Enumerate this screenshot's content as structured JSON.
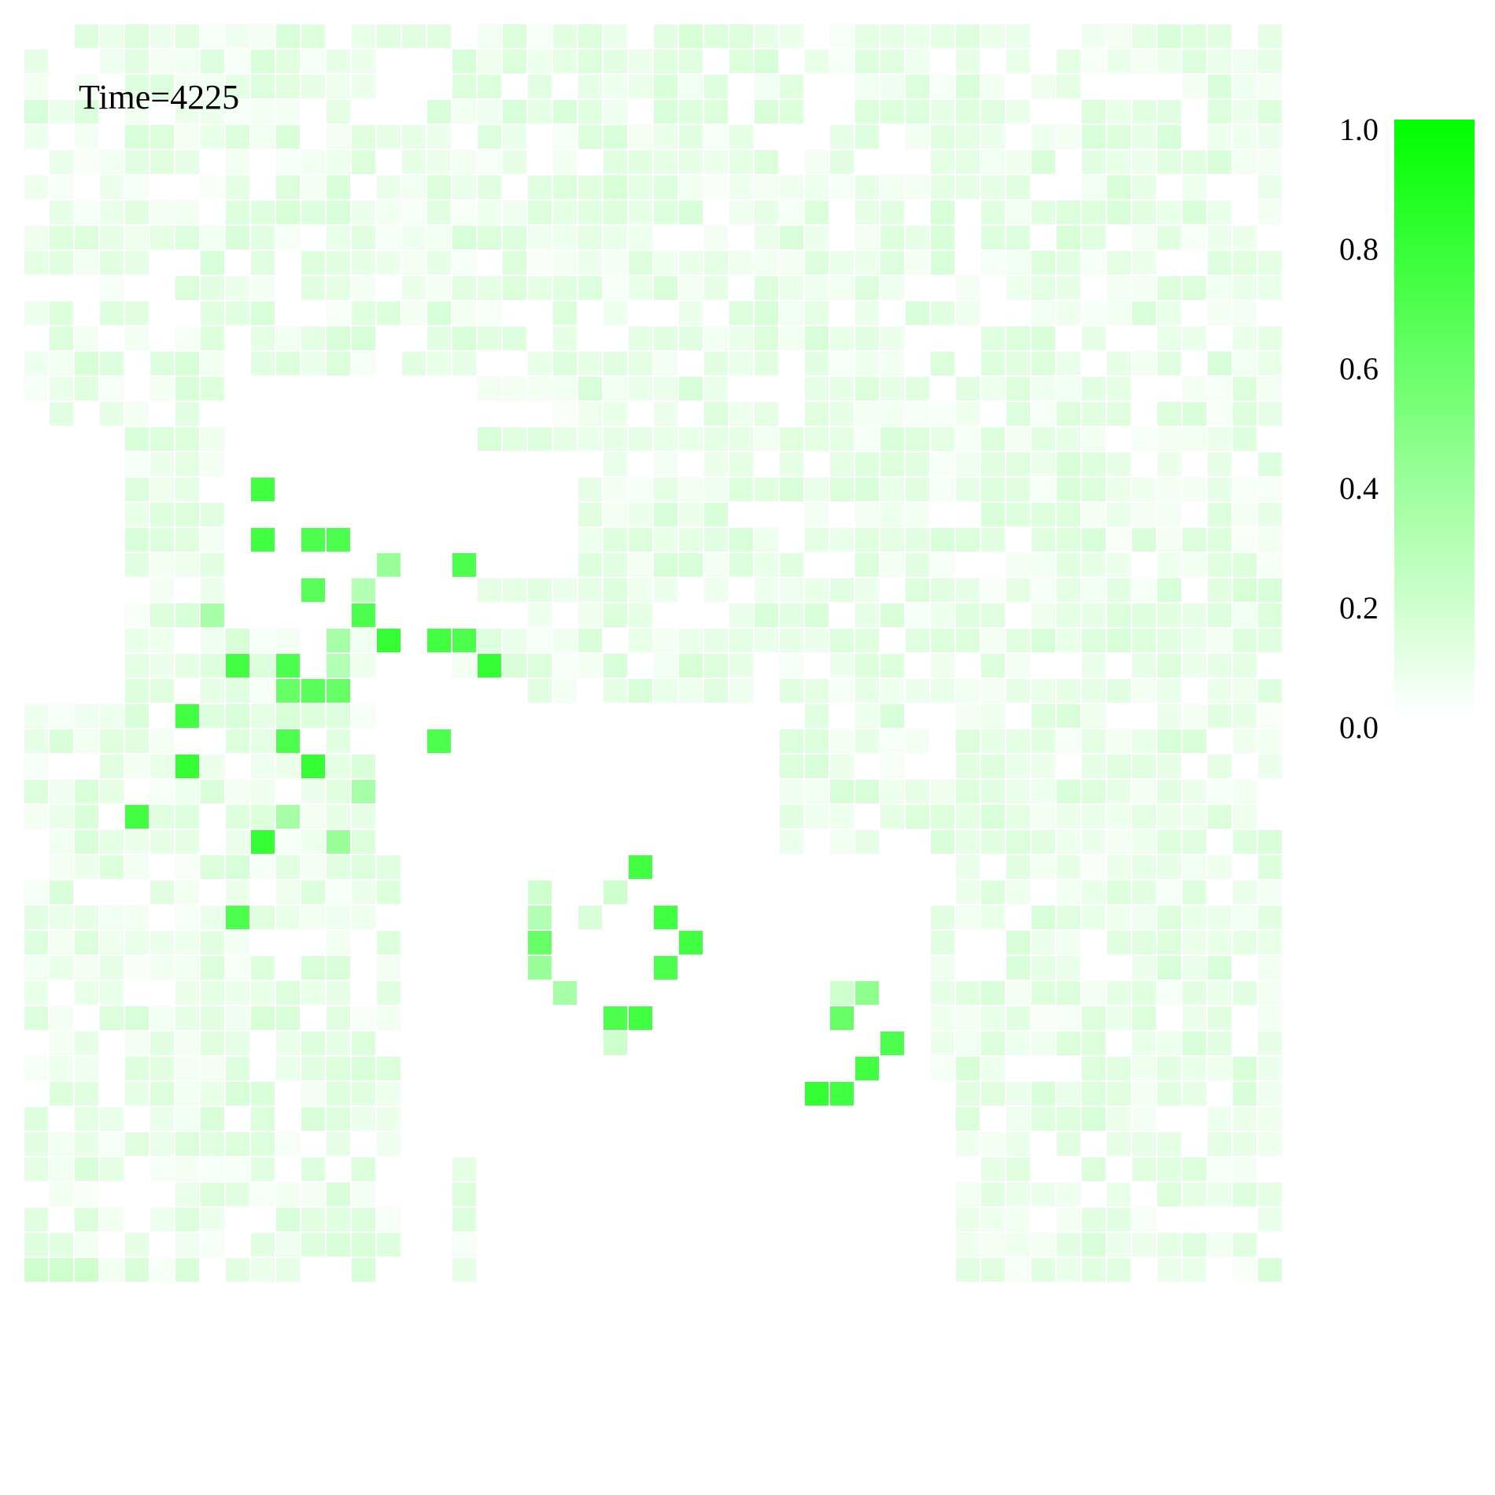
{
  "chart_data": {
    "type": "heatmap",
    "annotation": "Time=4225",
    "title": "",
    "xlabel": "",
    "ylabel": "",
    "grid_rows": 50,
    "grid_cols": 50,
    "value_range": [
      0,
      1
    ],
    "colorbar": {
      "ticks": [
        "0.0",
        "0.2",
        "0.4",
        "0.6",
        "0.8",
        "1.0"
      ],
      "min_color": "#ffffff",
      "max_color": "#00ff00",
      "placement": "right"
    },
    "background_level": 0.08,
    "high_cells": [
      [
        18,
        9,
        0.75
      ],
      [
        20,
        9,
        0.75
      ],
      [
        20,
        11,
        0.7
      ],
      [
        20,
        12,
        0.7
      ],
      [
        21,
        14,
        0.4
      ],
      [
        21,
        17,
        0.7
      ],
      [
        22,
        13,
        0.3
      ],
      [
        22,
        11,
        0.65
      ],
      [
        23,
        13,
        0.7
      ],
      [
        23,
        7,
        0.35
      ],
      [
        24,
        14,
        0.8
      ],
      [
        24,
        16,
        0.75
      ],
      [
        24,
        17,
        0.7
      ],
      [
        24,
        12,
        0.35
      ],
      [
        25,
        8,
        0.75
      ],
      [
        25,
        10,
        0.7
      ],
      [
        25,
        12,
        0.3
      ],
      [
        25,
        18,
        0.8
      ],
      [
        26,
        10,
        0.6
      ],
      [
        26,
        11,
        0.65
      ],
      [
        26,
        12,
        0.6
      ],
      [
        27,
        6,
        0.75
      ],
      [
        28,
        10,
        0.7
      ],
      [
        28,
        16,
        0.7
      ],
      [
        29,
        6,
        0.8
      ],
      [
        29,
        11,
        0.8
      ],
      [
        30,
        13,
        0.35
      ],
      [
        31,
        4,
        0.75
      ],
      [
        31,
        10,
        0.35
      ],
      [
        32,
        9,
        0.8
      ],
      [
        32,
        12,
        0.4
      ],
      [
        33,
        24,
        0.75
      ],
      [
        34,
        20,
        0.2
      ],
      [
        34,
        23,
        0.2
      ],
      [
        35,
        8,
        0.7
      ],
      [
        35,
        20,
        0.3
      ],
      [
        35,
        25,
        0.75
      ],
      [
        35,
        22,
        0.15
      ],
      [
        36,
        20,
        0.6
      ],
      [
        36,
        26,
        0.75
      ],
      [
        37,
        20,
        0.4
      ],
      [
        37,
        25,
        0.7
      ],
      [
        38,
        21,
        0.35
      ],
      [
        38,
        33,
        0.45
      ],
      [
        38,
        32,
        0.2
      ],
      [
        39,
        23,
        0.7
      ],
      [
        39,
        24,
        0.75
      ],
      [
        39,
        32,
        0.6
      ],
      [
        40,
        34,
        0.7
      ],
      [
        40,
        23,
        0.2
      ],
      [
        41,
        33,
        0.75
      ],
      [
        42,
        31,
        0.8
      ],
      [
        42,
        32,
        0.75
      ],
      [
        49,
        0,
        0.2
      ],
      [
        49,
        1,
        0.2
      ],
      [
        49,
        2,
        0.2
      ]
    ],
    "empty_regions": [
      [
        24,
        15,
        50,
        17
      ],
      [
        26,
        14,
        33,
        20
      ],
      [
        27,
        20,
        36,
        30
      ],
      [
        30,
        16,
        44,
        20
      ],
      [
        33,
        18,
        50,
        36
      ],
      [
        42,
        20,
        50,
        37
      ],
      [
        36,
        27,
        46,
        30
      ],
      [
        14,
        8,
        24,
        18
      ],
      [
        16,
        0,
        27,
        4
      ],
      [
        17,
        18,
        22,
        22
      ]
    ]
  }
}
